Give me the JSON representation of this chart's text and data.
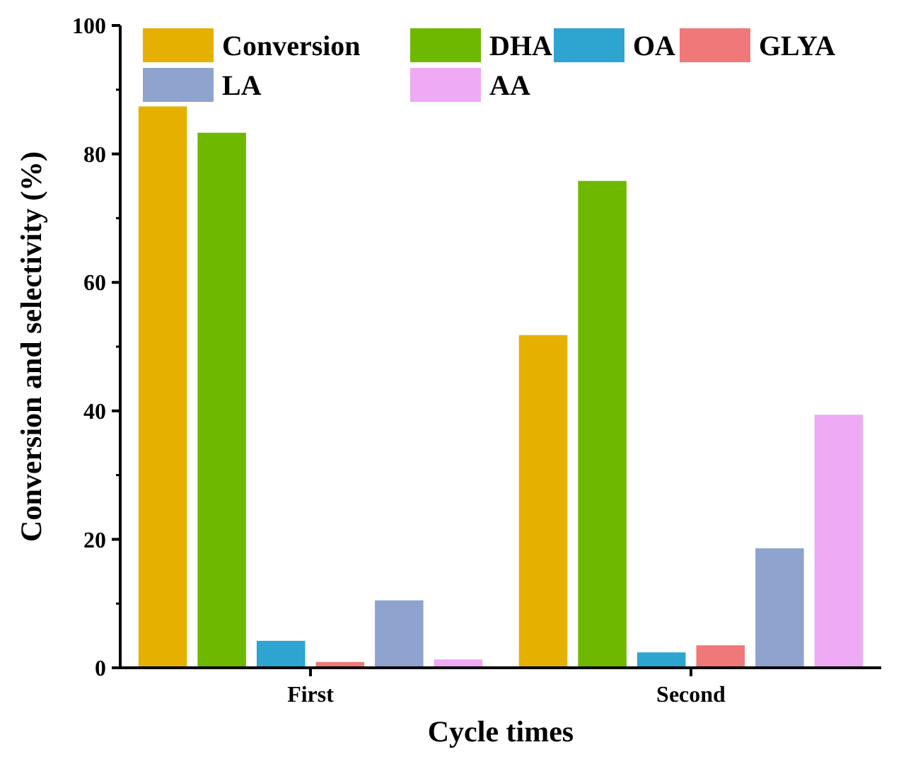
{
  "chart_data": {
    "type": "bar",
    "xlabel": "Cycle times",
    "ylabel": "Conversion and selectivity (%)",
    "categories": [
      "First",
      "Second"
    ],
    "series": [
      {
        "name": "Conversion",
        "color": "#e6b000",
        "values": [
          87.4,
          51.8
        ]
      },
      {
        "name": "DHA",
        "color": "#6fb800",
        "values": [
          83.3,
          75.8
        ]
      },
      {
        "name": "OA",
        "color": "#2ea4d0",
        "values": [
          4.2,
          2.4
        ]
      },
      {
        "name": "GLYA",
        "color": "#f07878",
        "values": [
          0.9,
          3.5
        ]
      },
      {
        "name": "LA",
        "color": "#8fa3cf",
        "values": [
          10.5,
          18.6
        ]
      },
      {
        "name": "AA",
        "color": "#eeaaf5",
        "values": [
          1.3,
          39.4
        ]
      }
    ],
    "ylim": [
      0,
      100
    ],
    "yticks": [
      0,
      20,
      40,
      60,
      80,
      100
    ],
    "legend": "top",
    "grid": false
  }
}
